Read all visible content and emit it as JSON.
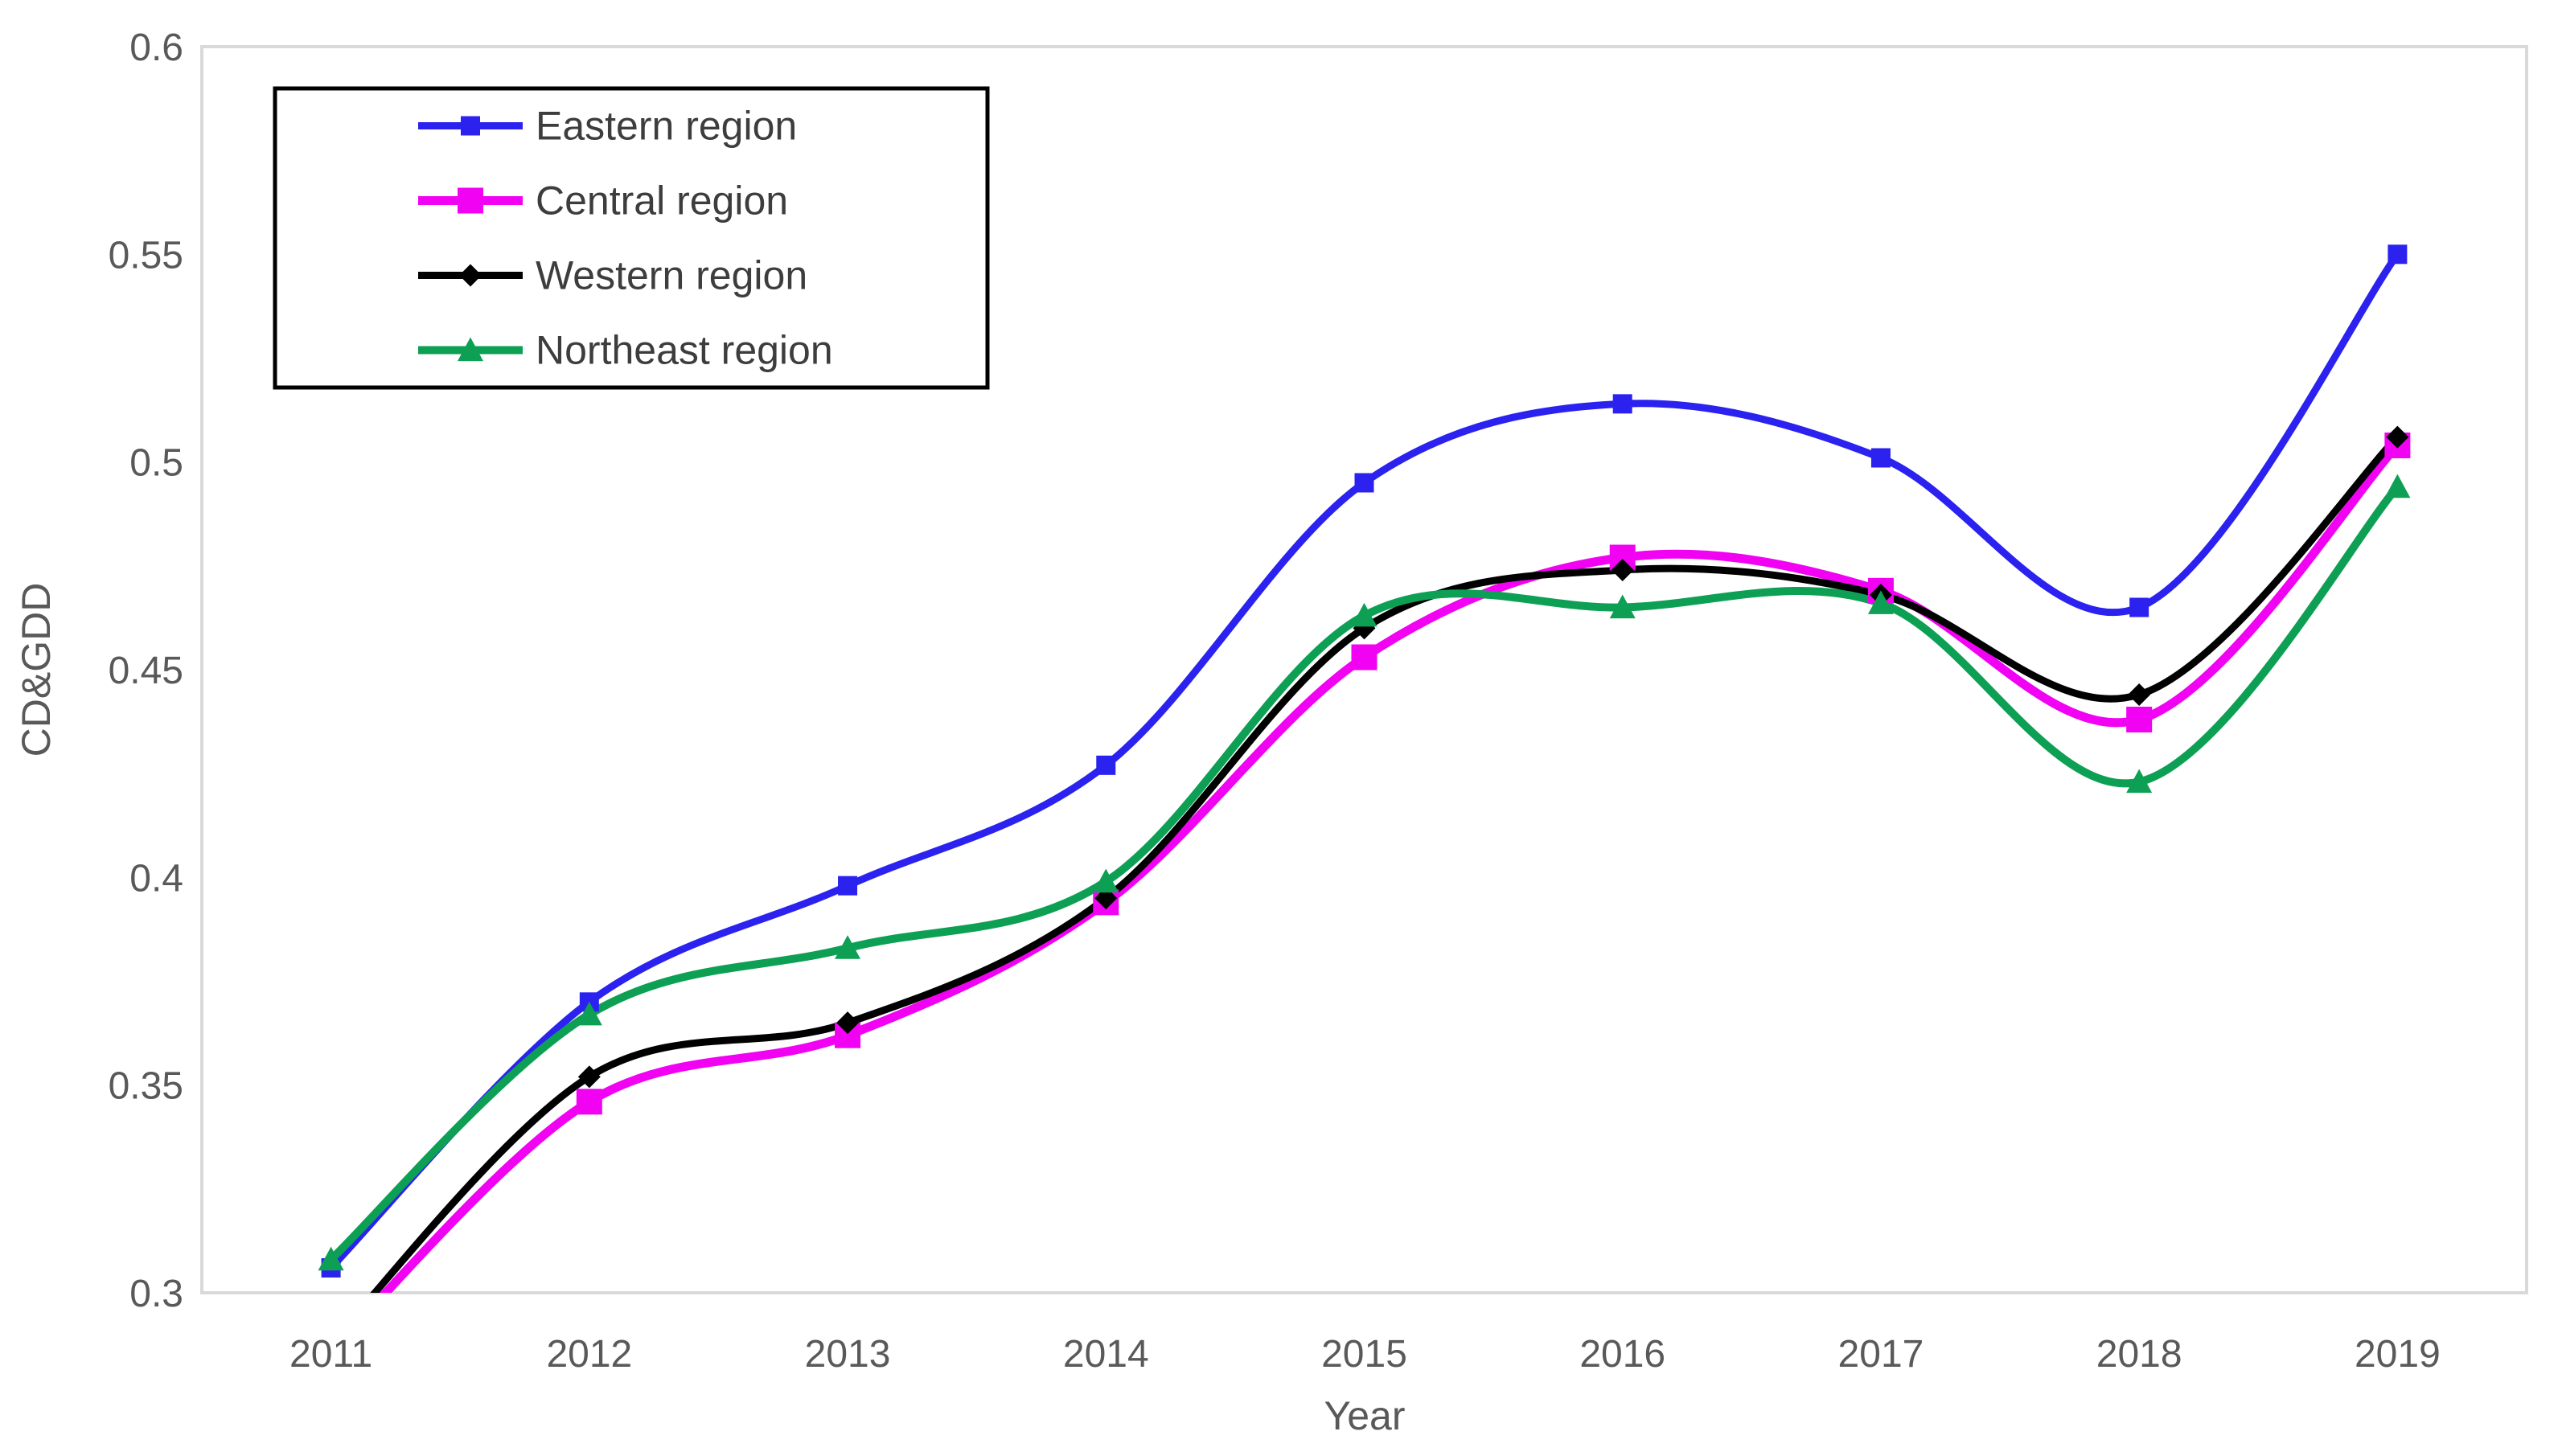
{
  "chart_data": {
    "type": "line",
    "line_style": "smooth",
    "title": "",
    "xlabel": "Year",
    "ylabel": "CD&GDD",
    "x_categories": [
      "2011",
      "2012",
      "2013",
      "2014",
      "2015",
      "2016",
      "2017",
      "2018",
      "2019"
    ],
    "y_ticks": [
      "0.6",
      "0.55",
      "0.5",
      "0.45",
      "0.4",
      "0.35",
      "0.3"
    ],
    "y_tick_values": [
      0.6,
      0.55,
      0.5,
      0.45,
      0.4,
      0.35,
      0.3
    ],
    "ylim": [
      0.3,
      0.6
    ],
    "grid": false,
    "legend_position": "top-left-inside",
    "series": [
      {
        "name": "Eastern region",
        "color": "#2b22f0",
        "marker": "square",
        "marker_size": 24,
        "line_width": 9,
        "values": [
          0.306,
          0.37,
          0.398,
          0.427,
          0.495,
          0.514,
          0.501,
          0.465,
          0.55
        ]
      },
      {
        "name": "Central region",
        "color": "#f202f2",
        "marker": "square",
        "marker_size": 32,
        "line_width": 11,
        "values": [
          0.286,
          0.346,
          0.362,
          0.394,
          0.453,
          0.477,
          0.469,
          0.438,
          0.504
        ]
      },
      {
        "name": "Western region",
        "color": "#000000",
        "marker": "diamond",
        "marker_size": 28,
        "line_width": 9,
        "values": [
          0.288,
          0.352,
          0.365,
          0.395,
          0.46,
          0.474,
          0.468,
          0.444,
          0.506
        ]
      },
      {
        "name": "Northeast region",
        "color": "#0da055",
        "marker": "triangle-up",
        "marker_size": 32,
        "line_width": 10,
        "values": [
          0.308,
          0.367,
          0.383,
          0.399,
          0.463,
          0.465,
          0.466,
          0.423,
          0.494
        ]
      }
    ],
    "colors": {
      "axis_line": "#d9d9d9",
      "tick_label": "#595959",
      "axis_title": "#595959",
      "legend_text": "#3d3d3d",
      "legend_border": "#000000",
      "background": "#ffffff"
    }
  }
}
